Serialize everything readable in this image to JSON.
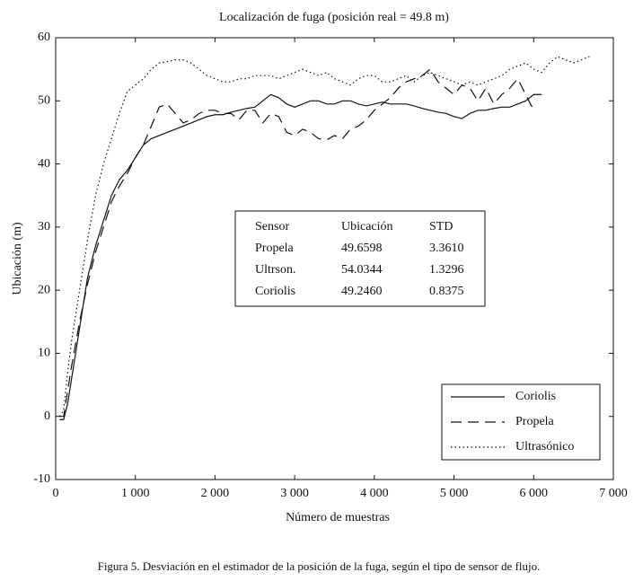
{
  "chart_data": {
    "type": "line",
    "title": "Localización de fuga (posición real = 49.8 m)",
    "xlabel": "Número de muestras",
    "ylabel": "Ubicación (m)",
    "x": [
      50,
      100,
      150,
      200,
      300,
      400,
      500,
      600,
      700,
      800,
      900,
      1000,
      1100,
      1200,
      1300,
      1400,
      1500,
      1600,
      1700,
      1800,
      1900,
      2000,
      2100,
      2200,
      2300,
      2400,
      2500,
      2600,
      2700,
      2800,
      2900,
      3000,
      3100,
      3200,
      3300,
      3400,
      3500,
      3600,
      3700,
      3800,
      3900,
      4000,
      4100,
      4200,
      4300,
      4400,
      4500,
      4600,
      4700,
      4800,
      4900,
      5000,
      5100,
      5200,
      5300,
      5400,
      5500,
      5600,
      5700,
      5800,
      5900,
      6000,
      6100,
      6200,
      6300,
      6400,
      6500,
      6600,
      6700
    ],
    "series": [
      {
        "name": "Coriolis",
        "color": "#111111",
        "dash": "none",
        "values": [
          -0.5,
          -0.5,
          2,
          6,
          14,
          22,
          27,
          31,
          35,
          37.5,
          39,
          41,
          43,
          44,
          44.5,
          45,
          45.5,
          46,
          46.5,
          47,
          47.5,
          47.8,
          47.8,
          48.2,
          48.5,
          48.8,
          49,
          50,
          51,
          50.5,
          49.5,
          49,
          49.5,
          50,
          50,
          49.5,
          49.5,
          50,
          50,
          49.5,
          49.2,
          49.5,
          49.8,
          49.5,
          49.5,
          49.5,
          49.2,
          48.8,
          48.5,
          48.2,
          48,
          47.5,
          47.2,
          48,
          48.5,
          48.5,
          48.8,
          49,
          49,
          49.5,
          50,
          51,
          51,
          null,
          null,
          null,
          null,
          null,
          null
        ]
      },
      {
        "name": "Propela",
        "color": "#111111",
        "dash": "12 7",
        "values": [
          0,
          0,
          4,
          8,
          15,
          21,
          26,
          30,
          34,
          36.5,
          38.5,
          41,
          43,
          46,
          49,
          49.5,
          48,
          46.5,
          47,
          48,
          48.5,
          48.5,
          48,
          48,
          47,
          48.5,
          48.5,
          46.5,
          48,
          47.5,
          45,
          44.5,
          45.5,
          45,
          44,
          43.8,
          44.5,
          44,
          45.5,
          46,
          47,
          48.5,
          49.5,
          50.5,
          52,
          53,
          53.5,
          54,
          55,
          53,
          52,
          51,
          52.5,
          52,
          50,
          52,
          49.5,
          51,
          52,
          53.5,
          51,
          48.5,
          null,
          null,
          null,
          null,
          null,
          null,
          null
        ]
      },
      {
        "name": "Ultrasónico",
        "color": "#111111",
        "dash": "1.5 3",
        "values": [
          0,
          1,
          7,
          12,
          20,
          28,
          35,
          40,
          44,
          48,
          51.5,
          52.5,
          53.5,
          55,
          56,
          56.2,
          56.5,
          56.5,
          56,
          55,
          54,
          53.5,
          53,
          53,
          53.5,
          53.5,
          54,
          54,
          54,
          53.5,
          54,
          54.5,
          55,
          54.5,
          54,
          54.5,
          53.5,
          53,
          52.5,
          53.5,
          54,
          54,
          53,
          53,
          53.5,
          54,
          53,
          54,
          54.5,
          54,
          53.5,
          53,
          52.5,
          53,
          52.5,
          53,
          53.5,
          54,
          55,
          55.5,
          56,
          55,
          54.5,
          56,
          57,
          56.5,
          56,
          56.5,
          57
        ]
      }
    ],
    "xlim": [
      0,
      7000
    ],
    "xticks": [
      0,
      {
        "value": 1000,
        "label": "1 000"
      },
      {
        "value": 2000,
        "label": "2 000"
      },
      {
        "value": 3000,
        "label": "3 000"
      },
      {
        "value": 4000,
        "label": "4 000"
      },
      {
        "value": 5000,
        "label": "5 000"
      },
      {
        "value": 6000,
        "label": "6 000"
      },
      {
        "value": 7000,
        "label": "7 000"
      }
    ],
    "ylim": [
      -10,
      60
    ],
    "yticks": [
      -10,
      0,
      10,
      20,
      30,
      40,
      50,
      60
    ],
    "legend": "lower right",
    "table": {
      "columns": [
        "Sensor",
        "Ubicación",
        "STD"
      ],
      "rows": [
        [
          "Propela",
          "49.6598",
          "3.3610"
        ],
        [
          "Ultrson.",
          "54.0344",
          "1.3296"
        ],
        [
          "Coriolis",
          "49.2460",
          "0.8375"
        ]
      ]
    }
  },
  "caption": "Figura 5. Desviación en el estimador de la posición de la fuga, según el tipo de sensor de flujo."
}
